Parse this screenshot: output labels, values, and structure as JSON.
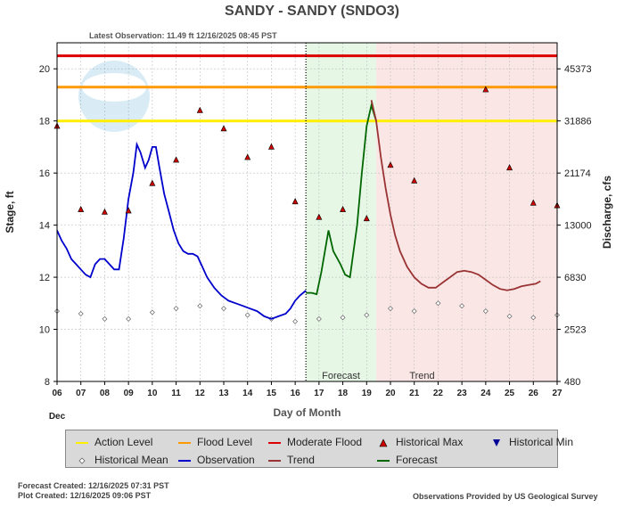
{
  "header": {
    "title": "SANDY - SANDY  (SNDO3)",
    "latest_observation": "Latest Observation: 11.49 ft 12/16/2025 08:45 PST"
  },
  "chart_data": {
    "type": "line",
    "ylabel": "Stage, ft",
    "y2label": "Discharge, cfs",
    "xlabel": "Day of Month",
    "month_label": "Dec",
    "ylim": [
      8,
      21
    ],
    "xlim": [
      6,
      27
    ],
    "yticks": [
      8,
      10,
      12,
      14,
      16,
      18,
      20
    ],
    "xticks": [
      "06",
      "07",
      "08",
      "09",
      "10",
      "11",
      "12",
      "13",
      "14",
      "15",
      "16",
      "17",
      "18",
      "19",
      "20",
      "21",
      "22",
      "23",
      "24",
      "25",
      "26",
      "27"
    ],
    "y2ticks": [
      {
        "stage": 8,
        "label": "480"
      },
      {
        "stage": 10,
        "label": "2523"
      },
      {
        "stage": 12,
        "label": "6830"
      },
      {
        "stage": 14,
        "label": "13000"
      },
      {
        "stage": 16,
        "label": "21174"
      },
      {
        "stage": 18,
        "label": "31886"
      },
      {
        "stage": 20,
        "label": "45373"
      }
    ],
    "thresholds": [
      {
        "name": "Action Level",
        "value": 18.0,
        "color": "#ffee00"
      },
      {
        "name": "Flood Level",
        "value": 19.3,
        "color": "#ff9900"
      },
      {
        "name": "Moderate Flood",
        "value": 20.5,
        "color": "#dd0000"
      }
    ],
    "regions": [
      {
        "label": "Forecast",
        "x0": 16.45,
        "x1": 19.4,
        "color": "#e6f7e6"
      },
      {
        "label": "Trend",
        "x0": 19.4,
        "x1": 27,
        "color": "#fbe6e6"
      }
    ],
    "latest_x": 16.45,
    "series": [
      {
        "name": "Observation",
        "color": "#0000cc",
        "points": [
          [
            6.0,
            13.8
          ],
          [
            6.2,
            13.4
          ],
          [
            6.4,
            13.1
          ],
          [
            6.6,
            12.7
          ],
          [
            6.8,
            12.5
          ],
          [
            7.0,
            12.3
          ],
          [
            7.2,
            12.1
          ],
          [
            7.4,
            12.0
          ],
          [
            7.6,
            12.5
          ],
          [
            7.8,
            12.7
          ],
          [
            8.0,
            12.7
          ],
          [
            8.2,
            12.5
          ],
          [
            8.4,
            12.3
          ],
          [
            8.6,
            12.3
          ],
          [
            8.8,
            13.5
          ],
          [
            9.0,
            15.0
          ],
          [
            9.2,
            16.0
          ],
          [
            9.35,
            17.1
          ],
          [
            9.5,
            16.8
          ],
          [
            9.7,
            16.2
          ],
          [
            9.85,
            16.5
          ],
          [
            10.0,
            17.0
          ],
          [
            10.15,
            17.0
          ],
          [
            10.3,
            16.2
          ],
          [
            10.5,
            15.2
          ],
          [
            10.7,
            14.5
          ],
          [
            10.9,
            13.8
          ],
          [
            11.1,
            13.3
          ],
          [
            11.3,
            13.0
          ],
          [
            11.5,
            12.9
          ],
          [
            11.7,
            12.9
          ],
          [
            11.9,
            12.8
          ],
          [
            12.1,
            12.4
          ],
          [
            12.3,
            12.0
          ],
          [
            12.6,
            11.6
          ],
          [
            12.9,
            11.3
          ],
          [
            13.2,
            11.1
          ],
          [
            13.5,
            11.0
          ],
          [
            13.8,
            10.9
          ],
          [
            14.1,
            10.8
          ],
          [
            14.4,
            10.7
          ],
          [
            14.7,
            10.5
          ],
          [
            15.0,
            10.4
          ],
          [
            15.3,
            10.5
          ],
          [
            15.6,
            10.6
          ],
          [
            15.8,
            10.8
          ],
          [
            16.0,
            11.1
          ],
          [
            16.2,
            11.3
          ],
          [
            16.45,
            11.49
          ]
        ]
      },
      {
        "name": "Forecast",
        "color": "#006600",
        "points": [
          [
            16.45,
            11.4
          ],
          [
            16.7,
            11.4
          ],
          [
            16.9,
            11.35
          ],
          [
            17.1,
            12.2
          ],
          [
            17.4,
            13.8
          ],
          [
            17.6,
            13.0
          ],
          [
            17.9,
            12.5
          ],
          [
            18.1,
            12.1
          ],
          [
            18.3,
            12.0
          ],
          [
            18.6,
            14.0
          ],
          [
            18.8,
            16.0
          ],
          [
            19.0,
            17.8
          ],
          [
            19.2,
            18.6
          ],
          [
            19.4,
            18.0
          ]
        ]
      },
      {
        "name": "Trend",
        "color": "#993333",
        "points": [
          [
            19.2,
            18.8
          ],
          [
            19.4,
            18.0
          ],
          [
            19.6,
            16.6
          ],
          [
            19.8,
            15.4
          ],
          [
            20.0,
            14.4
          ],
          [
            20.2,
            13.6
          ],
          [
            20.4,
            13.0
          ],
          [
            20.7,
            12.4
          ],
          [
            21.0,
            12.0
          ],
          [
            21.3,
            11.75
          ],
          [
            21.6,
            11.6
          ],
          [
            21.9,
            11.6
          ],
          [
            22.2,
            11.8
          ],
          [
            22.5,
            12.0
          ],
          [
            22.8,
            12.2
          ],
          [
            23.1,
            12.25
          ],
          [
            23.4,
            12.2
          ],
          [
            23.7,
            12.1
          ],
          [
            24.0,
            11.9
          ],
          [
            24.3,
            11.7
          ],
          [
            24.6,
            11.55
          ],
          [
            24.9,
            11.5
          ],
          [
            25.2,
            11.55
          ],
          [
            25.5,
            11.65
          ],
          [
            25.8,
            11.7
          ],
          [
            26.1,
            11.75
          ],
          [
            26.3,
            11.85
          ]
        ]
      }
    ],
    "historical_max": [
      [
        6.0,
        17.8
      ],
      [
        7.0,
        14.6
      ],
      [
        8.0,
        14.5
      ],
      [
        9.0,
        14.55
      ],
      [
        10.0,
        15.6
      ],
      [
        11.0,
        16.5
      ],
      [
        12.0,
        18.4
      ],
      [
        13.0,
        17.7
      ],
      [
        14.0,
        16.6
      ],
      [
        15.0,
        17.0
      ],
      [
        16.0,
        14.9
      ],
      [
        17.0,
        14.3
      ],
      [
        18.0,
        14.6
      ],
      [
        19.0,
        14.25
      ],
      [
        20.0,
        16.3
      ],
      [
        21.0,
        15.7
      ],
      [
        24.0,
        19.2
      ],
      [
        25.0,
        16.2
      ],
      [
        26.0,
        14.85
      ],
      [
        27.0,
        14.75
      ]
    ],
    "historical_mean": [
      [
        6.0,
        10.7
      ],
      [
        7.0,
        10.6
      ],
      [
        8.0,
        10.4
      ],
      [
        9.0,
        10.4
      ],
      [
        10.0,
        10.65
      ],
      [
        11.0,
        10.8
      ],
      [
        12.0,
        10.9
      ],
      [
        13.0,
        10.8
      ],
      [
        14.0,
        10.55
      ],
      [
        15.0,
        10.4
      ],
      [
        16.0,
        10.3
      ],
      [
        17.0,
        10.4
      ],
      [
        18.0,
        10.45
      ],
      [
        19.0,
        10.55
      ],
      [
        20.0,
        10.8
      ],
      [
        21.0,
        10.7
      ],
      [
        22.0,
        11.0
      ],
      [
        23.0,
        10.9
      ],
      [
        24.0,
        10.7
      ],
      [
        25.0,
        10.5
      ],
      [
        26.0,
        10.45
      ],
      [
        27.0,
        10.55
      ]
    ]
  },
  "legend": {
    "items": [
      {
        "label": "Action Level",
        "kind": "line",
        "color": "#ffee00"
      },
      {
        "label": "Flood Level",
        "kind": "line",
        "color": "#ff9900"
      },
      {
        "label": "Moderate Flood",
        "kind": "line",
        "color": "#dd0000"
      },
      {
        "label": "Historical Max",
        "kind": "triangle-up",
        "color": "#cc0000"
      },
      {
        "label": "Historical Min",
        "kind": "triangle-down",
        "color": "#000099"
      },
      {
        "label": "Historical Mean",
        "kind": "diamond",
        "color": "#888888"
      },
      {
        "label": "Observation",
        "kind": "line",
        "color": "#0000cc"
      },
      {
        "label": "Trend",
        "kind": "line",
        "color": "#993333"
      },
      {
        "label": "Forecast",
        "kind": "line",
        "color": "#006600"
      }
    ]
  },
  "footer": {
    "forecast_created": "Forecast Created: 12/16/2025 07:31 PST",
    "plot_created": "Plot Created: 12/16/2025 09:06 PST",
    "provider": "Observations Provided by US Geological Survey"
  }
}
